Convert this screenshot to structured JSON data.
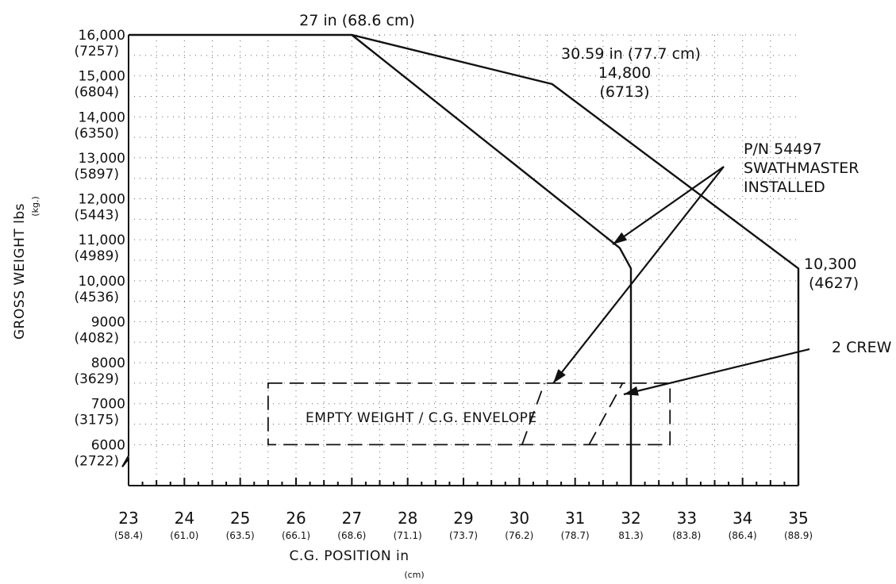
{
  "chart_data": {
    "type": "line",
    "title": "",
    "xlabel": "C.G. POSITION in",
    "xlabel_unit": "(cm)",
    "ylabel": "GROSS WEIGHT lbs",
    "ylabel_unit": "(kg.)",
    "xlim": [
      23,
      35
    ],
    "ylim": [
      5000,
      16000
    ],
    "grid": true,
    "x_ticks": [
      {
        "value": 23,
        "label": "23",
        "sub": "(58.4)"
      },
      {
        "value": 24,
        "label": "24",
        "sub": "(61.0)"
      },
      {
        "value": 25,
        "label": "25",
        "sub": "(63.5)"
      },
      {
        "value": 26,
        "label": "26",
        "sub": "(66.1)"
      },
      {
        "value": 27,
        "label": "27",
        "sub": "(68.6)"
      },
      {
        "value": 28,
        "label": "28",
        "sub": "(71.1)"
      },
      {
        "value": 29,
        "label": "29",
        "sub": "(73.7)"
      },
      {
        "value": 30,
        "label": "30",
        "sub": "(76.2)"
      },
      {
        "value": 31,
        "label": "31",
        "sub": "(78.7)"
      },
      {
        "value": 32,
        "label": "32",
        "sub": "81.3)"
      },
      {
        "value": 33,
        "label": "33",
        "sub": "(83.8)"
      },
      {
        "value": 34,
        "label": "34",
        "sub": "(86.4)"
      },
      {
        "value": 35,
        "label": "35",
        "sub": "(88.9)"
      }
    ],
    "y_ticks": [
      {
        "value": 16000,
        "label": "16,000",
        "sub": "(7257)"
      },
      {
        "value": 15000,
        "label": "15,000",
        "sub": "(6804)"
      },
      {
        "value": 14000,
        "label": "14,000",
        "sub": "(6350)"
      },
      {
        "value": 13000,
        "label": "13,000",
        "sub": "(5897)"
      },
      {
        "value": 12000,
        "label": "12,000",
        "sub": "(5443)"
      },
      {
        "value": 11000,
        "label": "11,000",
        "sub": "(4989)"
      },
      {
        "value": 10000,
        "label": "10,000",
        "sub": "(4536)"
      },
      {
        "value": 9000,
        "label": "9000",
        "sub": "(4082)"
      },
      {
        "value": 8000,
        "label": "8000",
        "sub": "(3629)"
      },
      {
        "value": 7000,
        "label": "7000",
        "sub": "(3175)"
      },
      {
        "value": 6000,
        "label": "6000",
        "sub": "(2722)"
      }
    ],
    "series": [
      {
        "points": [
          [
            23,
            16000
          ],
          [
            27,
            16000
          ],
          [
            30.59,
            14800
          ],
          [
            35,
            10300
          ],
          [
            35,
            5000
          ]
        ]
      },
      {
        "points": [
          [
            27,
            16000
          ],
          [
            31.8,
            10800
          ],
          [
            32,
            10300
          ],
          [
            32,
            5000
          ]
        ]
      }
    ],
    "annotations": {
      "top": "27 in (68.6 cm)",
      "mid_line1": "30.59 in (77.7 cm)",
      "mid_line2": "14,800",
      "mid_line3": "(6713)",
      "right_line1": "10,300",
      "right_line2": "(4627)",
      "swath_line1": "P/N 54497",
      "swath_line2": "SWATHMASTER",
      "swath_line3": "INSTALLED",
      "crew": "2 CREW",
      "envelope": "EMPTY WEIGHT / C.G. ENVELOPE"
    },
    "empty_weight_envelope": {
      "x": [
        25.5,
        32.7
      ],
      "y": [
        6000,
        7500
      ]
    },
    "swathmaster_empty_limit": [
      [
        30.05,
        6000
      ],
      [
        30.45,
        7500
      ]
    ],
    "crew_empty_limit": [
      [
        31.25,
        6000
      ],
      [
        31.85,
        7500
      ]
    ]
  }
}
